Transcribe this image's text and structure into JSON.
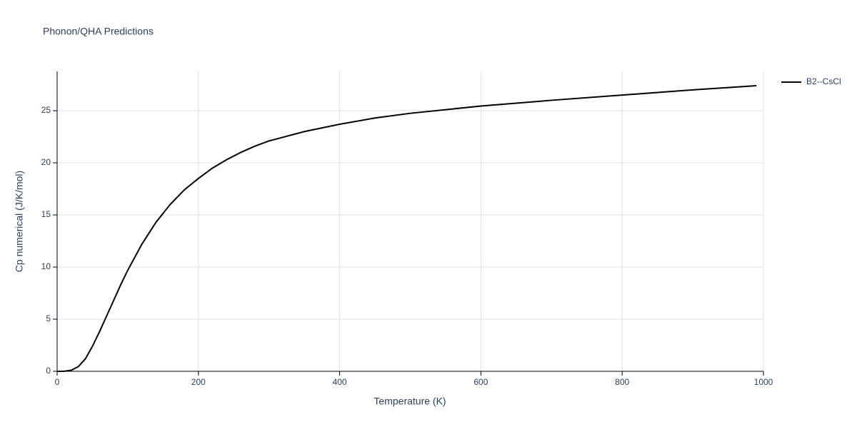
{
  "chart_data": {
    "type": "line",
    "title": "Phonon/QHA Predictions",
    "x_label": "Temperature (K)",
    "y_label": "Cp numerical (J/K/mol)",
    "x": [
      0,
      10,
      20,
      30,
      40,
      50,
      60,
      70,
      80,
      90,
      100,
      120,
      140,
      160,
      180,
      200,
      220,
      240,
      260,
      280,
      300,
      350,
      400,
      450,
      500,
      600,
      700,
      800,
      900,
      990
    ],
    "series": [
      {
        "name": "B2--CsCl",
        "color": "#000000",
        "values": [
          0,
          0.01,
          0.1,
          0.45,
          1.2,
          2.4,
          3.8,
          5.3,
          6.8,
          8.3,
          9.7,
          12.2,
          14.3,
          16.0,
          17.4,
          18.5,
          19.5,
          20.3,
          21.0,
          21.6,
          22.1,
          23.0,
          23.7,
          24.3,
          24.75,
          25.45,
          26.0,
          26.5,
          27.0,
          27.4
        ]
      }
    ],
    "xlim": [
      0,
      1000
    ],
    "xticks": [
      0,
      200,
      400,
      600,
      800,
      1000
    ],
    "ylim": [
      0,
      28.77
    ],
    "yticks": [
      0,
      5,
      10,
      15,
      20,
      25
    ],
    "grid": true,
    "legend": "outside-right"
  }
}
